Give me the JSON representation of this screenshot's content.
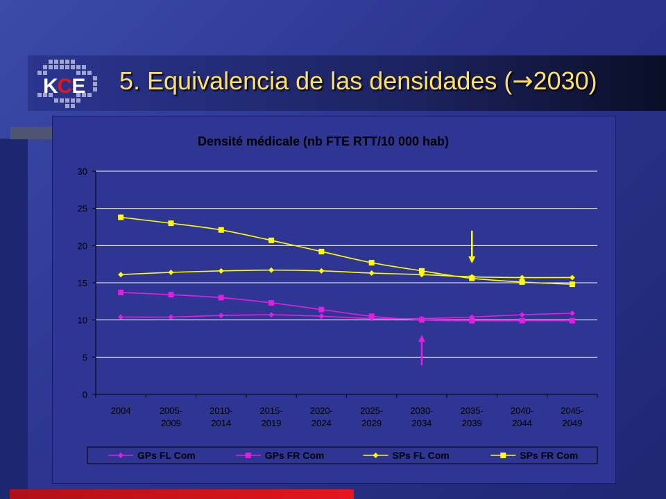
{
  "slide": {
    "logo_text_k": "K",
    "logo_text_c": "C",
    "logo_text_e": "E",
    "title_prefix": "5. Equivalencia de las densidades (",
    "title_arrow": "→",
    "title_suffix": "2030)"
  },
  "colors": {
    "gp": "#e31ee3",
    "sp": "#ffff00",
    "plot_bg": "#2f3592",
    "text": "#000000"
  },
  "chart_data": {
    "type": "line",
    "title": "Densité médicale (nb FTE RTT/10 000 hab)",
    "xlabel": "",
    "ylabel": "",
    "ylim": [
      0,
      30
    ],
    "yticks": [
      0,
      5,
      10,
      15,
      20,
      25,
      30
    ],
    "grid": true,
    "legend_position": "bottom",
    "categories": [
      "2004",
      "2005-\n2009",
      "2010-\n2014",
      "2015-\n2019",
      "2020-\n2024",
      "2025-\n2029",
      "2030-\n2034",
      "2035-\n2039",
      "2040-\n2044",
      "2045-\n2049"
    ],
    "series": [
      {
        "name": "GPs FL Com",
        "color": "#e31ee3",
        "marker": "diamond",
        "values": [
          10.4,
          10.4,
          10.6,
          10.7,
          10.5,
          10.2,
          10.2,
          10.4,
          10.7,
          10.9
        ]
      },
      {
        "name": "GPs FR Com",
        "color": "#e31ee3",
        "marker": "square",
        "values": [
          13.7,
          13.4,
          13.0,
          12.3,
          11.4,
          10.5,
          10.0,
          9.9,
          9.9,
          9.9
        ]
      },
      {
        "name": "SPs FL Com",
        "color": "#ffff00",
        "marker": "diamond",
        "values": [
          16.1,
          16.4,
          16.6,
          16.7,
          16.6,
          16.3,
          16.1,
          15.8,
          15.7,
          15.7
        ]
      },
      {
        "name": "SPs FR Com",
        "color": "#ffff00",
        "marker": "square",
        "values": [
          23.8,
          23.0,
          22.1,
          20.7,
          19.2,
          17.7,
          16.6,
          15.6,
          15.1,
          14.8
        ]
      }
    ],
    "annotations": [
      {
        "type": "arrow-down",
        "color": "#ffff00",
        "category_index": 7,
        "from_value": 22.0,
        "to_value": 17.8
      },
      {
        "type": "arrow-up",
        "color": "#e31ee3",
        "category_index": 6,
        "from_value": 3.9,
        "to_value": 7.8
      }
    ]
  }
}
